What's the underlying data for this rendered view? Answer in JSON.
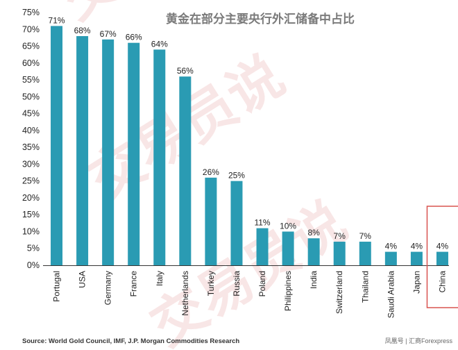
{
  "chart_data": {
    "type": "bar",
    "title": "黄金在部分主要央行外汇储备中占比",
    "categories": [
      "Portugal",
      "USA",
      "Germany",
      "France",
      "Italy",
      "Netherlands",
      "Turkey",
      "Russia",
      "Poland",
      "Philippines",
      "India",
      "Switzerland",
      "Thailand",
      "Saudi Arabia",
      "Japan",
      "China"
    ],
    "values": [
      71,
      68,
      67,
      66,
      64,
      56,
      26,
      25,
      11,
      10,
      8,
      7,
      7,
      4,
      4,
      4
    ],
    "data_labels": [
      "71%",
      "68%",
      "67%",
      "66%",
      "64%",
      "56%",
      "26%",
      "25%",
      "11%",
      "10%",
      "8%",
      "7%",
      "7%",
      "4%",
      "4%",
      "4%"
    ],
    "ylim": [
      0,
      75
    ],
    "yticks": [
      0,
      5,
      10,
      15,
      20,
      25,
      30,
      35,
      40,
      45,
      50,
      55,
      60,
      65,
      70,
      75
    ],
    "ytick_labels": [
      "0%",
      "5%",
      "10%",
      "15%",
      "20%",
      "25%",
      "30%",
      "35%",
      "40%",
      "45%",
      "50%",
      "55%",
      "60%",
      "65%",
      "70%",
      "75%"
    ],
    "highlight": "China",
    "grid": false,
    "legend": "none",
    "bar_color": "#2a9bb3",
    "highlight_color": "#d9534f"
  },
  "source": "Source: World Gold Council, IMF, J.P. Morgan Commodities Research",
  "credit": "凤凰号 | 汇商Forexpress",
  "watermark": "交易员说"
}
